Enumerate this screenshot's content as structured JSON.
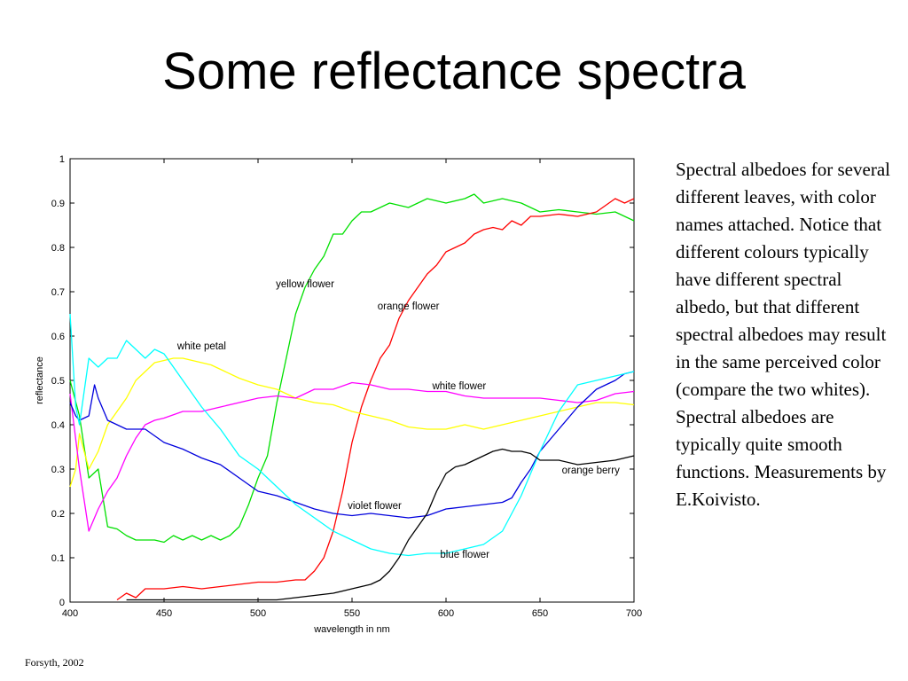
{
  "slide": {
    "title": "Some reflectance spectra",
    "description": "Spectral albedoes for several different leaves, with color names attached.  Notice that different colours typically have different spectral albedo, but that different spectral albedoes may result in the same perceived color (compare the two whites).  Spectral albedoes are typically quite smooth functions. Measurements by E.Koivisto.",
    "credit": "Forsyth, 2002"
  },
  "chart_data": {
    "type": "line",
    "xlabel": "wavelength in nm",
    "ylabel": "reflectance",
    "xlim": [
      400,
      700
    ],
    "ylim": [
      0,
      1
    ],
    "xticks": [
      400,
      450,
      500,
      550,
      600,
      650,
      700
    ],
    "yticks": [
      0,
      0.1,
      0.2,
      0.3,
      0.4,
      0.5,
      0.6,
      0.7,
      0.8,
      0.9,
      1
    ],
    "ytick_labels": [
      "0",
      "0.1",
      "0.2",
      "0.3",
      "0.4",
      "0.5",
      "0.6",
      "0.7",
      "0.8",
      "0.9",
      "1"
    ],
    "grid": false,
    "series": [
      {
        "name": "yellow flower",
        "color": "#00e000",
        "label_at": [
          525,
          0.71
        ],
        "x": [
          400,
          405,
          410,
          415,
          420,
          425,
          430,
          435,
          440,
          445,
          450,
          455,
          460,
          465,
          470,
          475,
          480,
          485,
          490,
          495,
          500,
          505,
          510,
          515,
          520,
          525,
          530,
          535,
          540,
          545,
          550,
          555,
          560,
          565,
          570,
          580,
          590,
          600,
          610,
          615,
          620,
          630,
          640,
          650,
          660,
          670,
          680,
          690,
          700
        ],
        "y": [
          0.5,
          0.42,
          0.28,
          0.3,
          0.17,
          0.165,
          0.15,
          0.14,
          0.14,
          0.14,
          0.135,
          0.15,
          0.14,
          0.15,
          0.14,
          0.15,
          0.14,
          0.15,
          0.17,
          0.22,
          0.28,
          0.33,
          0.45,
          0.55,
          0.65,
          0.71,
          0.75,
          0.78,
          0.83,
          0.83,
          0.86,
          0.88,
          0.88,
          0.89,
          0.9,
          0.89,
          0.91,
          0.9,
          0.91,
          0.92,
          0.9,
          0.91,
          0.9,
          0.88,
          0.885,
          0.88,
          0.875,
          0.88,
          0.86
        ]
      },
      {
        "name": "orange flower",
        "color": "#ff0000",
        "label_at": [
          580,
          0.66
        ],
        "x": [
          425,
          430,
          435,
          440,
          450,
          460,
          470,
          480,
          490,
          500,
          510,
          520,
          525,
          530,
          535,
          540,
          545,
          550,
          555,
          560,
          565,
          570,
          575,
          580,
          585,
          590,
          595,
          600,
          605,
          610,
          615,
          620,
          625,
          630,
          635,
          640,
          645,
          650,
          660,
          670,
          680,
          690,
          695,
          700
        ],
        "y": [
          0.005,
          0.02,
          0.01,
          0.03,
          0.03,
          0.035,
          0.03,
          0.035,
          0.04,
          0.045,
          0.045,
          0.05,
          0.05,
          0.07,
          0.1,
          0.16,
          0.25,
          0.36,
          0.44,
          0.5,
          0.55,
          0.58,
          0.64,
          0.68,
          0.71,
          0.74,
          0.76,
          0.79,
          0.8,
          0.81,
          0.83,
          0.84,
          0.845,
          0.84,
          0.86,
          0.85,
          0.87,
          0.87,
          0.875,
          0.87,
          0.88,
          0.91,
          0.9,
          0.91
        ]
      },
      {
        "name": "white petal",
        "color": "#ffff00",
        "label_at": [
          470,
          0.57
        ],
        "x": [
          400,
          403,
          405,
          410,
          415,
          420,
          425,
          430,
          435,
          440,
          445,
          450,
          455,
          460,
          465,
          470,
          475,
          480,
          490,
          500,
          510,
          520,
          530,
          540,
          550,
          560,
          570,
          580,
          590,
          600,
          610,
          620,
          630,
          640,
          650,
          660,
          670,
          680,
          690,
          700
        ],
        "y": [
          0.26,
          0.3,
          0.38,
          0.3,
          0.34,
          0.4,
          0.43,
          0.46,
          0.5,
          0.52,
          0.54,
          0.545,
          0.55,
          0.55,
          0.545,
          0.54,
          0.535,
          0.525,
          0.505,
          0.49,
          0.48,
          0.46,
          0.45,
          0.445,
          0.43,
          0.42,
          0.41,
          0.395,
          0.39,
          0.39,
          0.4,
          0.39,
          0.4,
          0.41,
          0.42,
          0.43,
          0.44,
          0.45,
          0.45,
          0.445
        ]
      },
      {
        "name": "white flower",
        "color": "#ff00ff",
        "label_at": [
          607,
          0.48
        ],
        "x": [
          400,
          405,
          410,
          415,
          420,
          425,
          430,
          435,
          440,
          445,
          450,
          460,
          470,
          480,
          490,
          500,
          510,
          520,
          530,
          540,
          550,
          560,
          570,
          580,
          590,
          600,
          610,
          620,
          630,
          640,
          650,
          660,
          670,
          680,
          690,
          700
        ],
        "y": [
          0.47,
          0.3,
          0.16,
          0.21,
          0.25,
          0.28,
          0.33,
          0.37,
          0.4,
          0.41,
          0.415,
          0.43,
          0.43,
          0.44,
          0.45,
          0.46,
          0.465,
          0.46,
          0.48,
          0.48,
          0.495,
          0.49,
          0.48,
          0.48,
          0.475,
          0.475,
          0.465,
          0.46,
          0.46,
          0.46,
          0.46,
          0.455,
          0.45,
          0.455,
          0.47,
          0.475
        ]
      },
      {
        "name": "violet flower",
        "color": "#0000dd",
        "label_at": [
          562,
          0.21
        ],
        "x": [
          400,
          403,
          405,
          410,
          413,
          415,
          420,
          425,
          430,
          440,
          450,
          460,
          470,
          480,
          490,
          500,
          510,
          520,
          530,
          540,
          550,
          560,
          570,
          580,
          590,
          600,
          610,
          620,
          630,
          635,
          640,
          645,
          650,
          660,
          670,
          680,
          690,
          695,
          700
        ],
        "y": [
          0.45,
          0.42,
          0.41,
          0.42,
          0.49,
          0.46,
          0.41,
          0.4,
          0.39,
          0.39,
          0.36,
          0.345,
          0.325,
          0.31,
          0.28,
          0.25,
          0.24,
          0.225,
          0.21,
          0.2,
          0.195,
          0.2,
          0.195,
          0.19,
          0.195,
          0.21,
          0.215,
          0.22,
          0.225,
          0.235,
          0.27,
          0.3,
          0.34,
          0.39,
          0.44,
          0.48,
          0.5,
          0.515,
          0.52
        ]
      },
      {
        "name": "blue flower",
        "color": "#00ffff",
        "label_at": [
          610,
          0.1
        ],
        "x": [
          400,
          403,
          405,
          410,
          415,
          420,
          425,
          430,
          435,
          440,
          445,
          450,
          460,
          470,
          480,
          490,
          500,
          510,
          520,
          530,
          540,
          550,
          560,
          570,
          580,
          590,
          600,
          610,
          620,
          630,
          640,
          650,
          660,
          670,
          680,
          690,
          700
        ],
        "y": [
          0.65,
          0.44,
          0.4,
          0.55,
          0.53,
          0.55,
          0.55,
          0.59,
          0.57,
          0.55,
          0.57,
          0.56,
          0.5,
          0.44,
          0.39,
          0.33,
          0.3,
          0.26,
          0.22,
          0.19,
          0.16,
          0.14,
          0.12,
          0.11,
          0.105,
          0.11,
          0.11,
          0.12,
          0.13,
          0.16,
          0.24,
          0.34,
          0.43,
          0.49,
          0.5,
          0.51,
          0.52
        ]
      },
      {
        "name": "orange berry",
        "color": "#000000",
        "label_at": [
          677,
          0.29
        ],
        "x": [
          430,
          440,
          450,
          460,
          470,
          480,
          490,
          500,
          510,
          520,
          530,
          540,
          550,
          560,
          565,
          570,
          575,
          580,
          585,
          590,
          595,
          600,
          605,
          610,
          615,
          620,
          625,
          630,
          635,
          640,
          645,
          650,
          660,
          670,
          680,
          690,
          700
        ],
        "y": [
          0.005,
          0.005,
          0.005,
          0.005,
          0.005,
          0.005,
          0.005,
          0.005,
          0.005,
          0.01,
          0.015,
          0.02,
          0.03,
          0.04,
          0.05,
          0.07,
          0.1,
          0.14,
          0.17,
          0.2,
          0.25,
          0.29,
          0.305,
          0.31,
          0.32,
          0.33,
          0.34,
          0.345,
          0.34,
          0.34,
          0.335,
          0.32,
          0.32,
          0.31,
          0.315,
          0.32,
          0.33
        ]
      }
    ]
  }
}
